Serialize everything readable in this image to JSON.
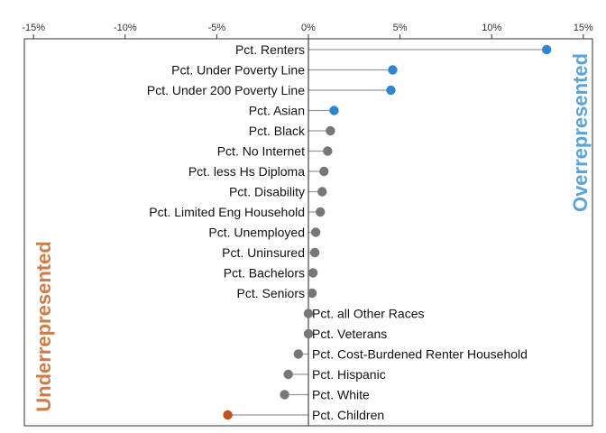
{
  "chart_data": {
    "type": "lollipop",
    "orientation": "horizontal",
    "title": "",
    "xlabel": "",
    "ylabel": "",
    "x_axis_position": "top",
    "xlim": [
      -15.5,
      15.5
    ],
    "x_ticks": [
      -15,
      -10,
      -5,
      0,
      5,
      10,
      15
    ],
    "x_tick_labels": [
      "-15%",
      "-10%",
      "-5%",
      "0%",
      "5%",
      "10%",
      "15%"
    ],
    "grid": false,
    "categories": [
      "Pct. Renters",
      "Pct. Under Poverty Line",
      "Pct. Under 200 Poverty Line",
      "Pct. Asian",
      "Pct. Black",
      "Pct. No Internet",
      "Pct. less Hs Diploma",
      "Pct. Disability",
      "Pct. Limited Eng Household",
      "Pct. Unemployed",
      "Pct. Uninsured",
      "Pct. Bachelors",
      "Pct. Seniors",
      "Pct. all Other Races",
      "Pct. Veterans",
      "Pct. Cost-Burdened Renter Household",
      "Pct. Hispanic",
      "Pct. White",
      "Pct. Children"
    ],
    "values": [
      13.0,
      4.6,
      4.5,
      1.4,
      1.2,
      1.05,
      0.85,
      0.75,
      0.65,
      0.4,
      0.35,
      0.25,
      0.2,
      0.0,
      0.0,
      -0.55,
      -1.1,
      -1.3,
      -4.4
    ],
    "point_colors": [
      "#2E86D1",
      "#2E86D1",
      "#2E86D1",
      "#2E86D1",
      "#777777",
      "#777777",
      "#777777",
      "#777777",
      "#777777",
      "#777777",
      "#777777",
      "#777777",
      "#777777",
      "#777777",
      "#777777",
      "#777777",
      "#777777",
      "#777777",
      "#C0501E"
    ],
    "annotations": {
      "overrepresented": {
        "text": "Overrepresented",
        "color": "#5BA3D9"
      },
      "underrepresented": {
        "text": "Underrepresented",
        "color": "#D07A45"
      }
    },
    "stem_color": "#999999",
    "zero_line_color": "#222222"
  }
}
